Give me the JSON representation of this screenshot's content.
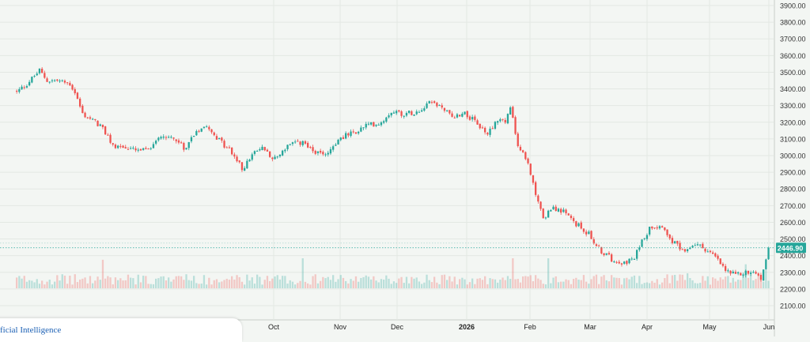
{
  "chart_data": {
    "type": "candlestick",
    "y_axis": {
      "ticks": [
        "3900.00",
        "3800.00",
        "3700.00",
        "3600.00",
        "3500.00",
        "3400.00",
        "3300.00",
        "3200.00",
        "3100.00",
        "3000.00",
        "2900.00",
        "2800.00",
        "2700.00",
        "2600.00",
        "2500.00",
        "2400.00",
        "2300.00",
        "2200.00",
        "2100.00"
      ],
      "ylim": [
        2100,
        3900
      ]
    },
    "x_axis": {
      "labels": [
        "Oct",
        "Nov",
        "Dec",
        "2026",
        "Feb",
        "Mar",
        "Apr",
        "May",
        "Jun"
      ]
    },
    "last_price": {
      "label": "2446.90",
      "value": 2446.9
    },
    "close_anchors": [
      [
        0,
        3380
      ],
      [
        4,
        3430
      ],
      [
        9,
        3510
      ],
      [
        12,
        3450
      ],
      [
        16,
        3450
      ],
      [
        21,
        3430
      ],
      [
        23,
        3380
      ],
      [
        26,
        3250
      ],
      [
        33,
        3180
      ],
      [
        38,
        3060
      ],
      [
        42,
        3050
      ],
      [
        47,
        3030
      ],
      [
        52,
        3030
      ],
      [
        56,
        3120
      ],
      [
        62,
        3110
      ],
      [
        66,
        3040
      ],
      [
        71,
        3150
      ],
      [
        75,
        3190
      ],
      [
        80,
        3090
      ],
      [
        85,
        3020
      ],
      [
        89,
        2920
      ],
      [
        93,
        3000
      ],
      [
        97,
        3050
      ],
      [
        102,
        2980
      ],
      [
        107,
        3060
      ],
      [
        113,
        3080
      ],
      [
        119,
        3010
      ],
      [
        123,
        3020
      ],
      [
        128,
        3110
      ],
      [
        134,
        3140
      ],
      [
        138,
        3180
      ],
      [
        144,
        3200
      ],
      [
        148,
        3270
      ],
      [
        153,
        3250
      ],
      [
        159,
        3270
      ],
      [
        163,
        3330
      ],
      [
        168,
        3290
      ],
      [
        172,
        3230
      ],
      [
        177,
        3260
      ],
      [
        181,
        3200
      ],
      [
        186,
        3130
      ],
      [
        190,
        3220
      ],
      [
        193,
        3200
      ],
      [
        195,
        3290
      ],
      [
        198,
        3060
      ],
      [
        202,
        2950
      ],
      [
        205,
        2780
      ],
      [
        208,
        2620
      ],
      [
        212,
        2690
      ],
      [
        216,
        2660
      ],
      [
        221,
        2590
      ],
      [
        226,
        2530
      ],
      [
        230,
        2440
      ],
      [
        235,
        2380
      ],
      [
        240,
        2360
      ],
      [
        244,
        2380
      ],
      [
        247,
        2500
      ],
      [
        251,
        2580
      ],
      [
        255,
        2580
      ],
      [
        259,
        2490
      ],
      [
        263,
        2430
      ],
      [
        268,
        2470
      ],
      [
        272,
        2440
      ],
      [
        276,
        2390
      ],
      [
        280,
        2310
      ],
      [
        284,
        2280
      ],
      [
        288,
        2300
      ],
      [
        292,
        2290
      ],
      [
        294,
        2260
      ],
      [
        297,
        2447
      ]
    ],
    "volume_level_range": [
      0,
      1
    ]
  },
  "bottom_tab": {
    "text": "ficial Intelligence"
  }
}
